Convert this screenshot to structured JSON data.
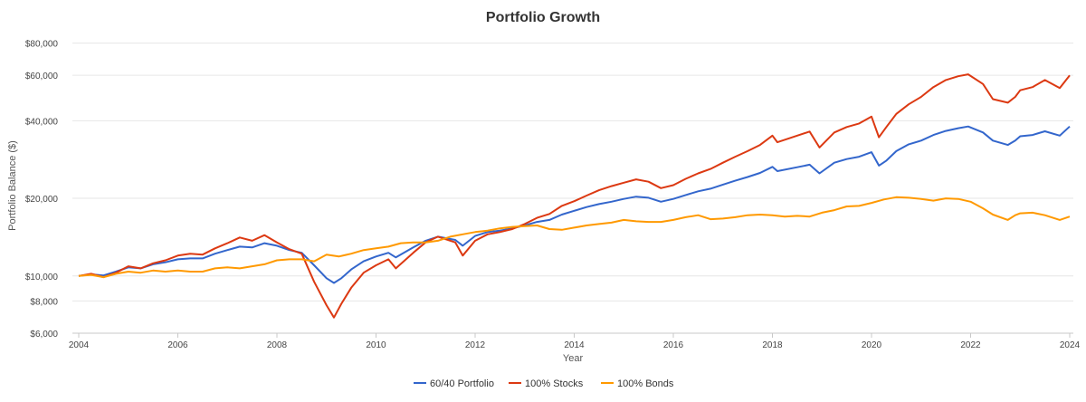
{
  "chart_data": {
    "type": "line",
    "title": "Portfolio Growth",
    "xlabel": "Year",
    "ylabel": "Portfolio Balance ($)",
    "y_scale": "log",
    "ylim": [
      6000,
      90000
    ],
    "xlim": [
      2004,
      2024
    ],
    "y_ticks": [
      {
        "value": 6000,
        "label": "$6,000"
      },
      {
        "value": 8000,
        "label": "$8,000"
      },
      {
        "value": 10000,
        "label": "$10,000"
      },
      {
        "value": 20000,
        "label": "$20,000"
      },
      {
        "value": 40000,
        "label": "$40,000"
      },
      {
        "value": 60000,
        "label": "$60,000"
      },
      {
        "value": 80000,
        "label": "$80,000"
      }
    ],
    "x_ticks": [
      {
        "value": 2004,
        "label": "2004"
      },
      {
        "value": 2006,
        "label": "2006"
      },
      {
        "value": 2008,
        "label": "2008"
      },
      {
        "value": 2010,
        "label": "2010"
      },
      {
        "value": 2012,
        "label": "2012"
      },
      {
        "value": 2014,
        "label": "2014"
      },
      {
        "value": 2016,
        "label": "2016"
      },
      {
        "value": 2018,
        "label": "2018"
      },
      {
        "value": 2020,
        "label": "2020"
      },
      {
        "value": 2022,
        "label": "2022"
      },
      {
        "value": 2024,
        "label": "2024"
      }
    ],
    "legend_position": "bottom-center",
    "series": [
      {
        "name": "60/40 Portfolio",
        "color": "#3366cc",
        "points": [
          [
            2004.0,
            10000
          ],
          [
            2004.25,
            10150
          ],
          [
            2004.5,
            10050
          ],
          [
            2004.75,
            10400
          ],
          [
            2005.0,
            10800
          ],
          [
            2005.25,
            10700
          ],
          [
            2005.5,
            11100
          ],
          [
            2005.75,
            11300
          ],
          [
            2006.0,
            11600
          ],
          [
            2006.25,
            11700
          ],
          [
            2006.5,
            11700
          ],
          [
            2006.75,
            12200
          ],
          [
            2007.0,
            12600
          ],
          [
            2007.25,
            13000
          ],
          [
            2007.5,
            12900
          ],
          [
            2007.75,
            13400
          ],
          [
            2008.0,
            13100
          ],
          [
            2008.25,
            12600
          ],
          [
            2008.5,
            12300
          ],
          [
            2008.75,
            11000
          ],
          [
            2009.0,
            9800
          ],
          [
            2009.15,
            9400
          ],
          [
            2009.3,
            9800
          ],
          [
            2009.5,
            10600
          ],
          [
            2009.75,
            11400
          ],
          [
            2010.0,
            11900
          ],
          [
            2010.25,
            12300
          ],
          [
            2010.4,
            11800
          ],
          [
            2010.75,
            12900
          ],
          [
            2011.0,
            13700
          ],
          [
            2011.25,
            14200
          ],
          [
            2011.6,
            13800
          ],
          [
            2011.75,
            13100
          ],
          [
            2012.0,
            14300
          ],
          [
            2012.25,
            14800
          ],
          [
            2012.5,
            15000
          ],
          [
            2012.75,
            15300
          ],
          [
            2013.0,
            15700
          ],
          [
            2013.25,
            16200
          ],
          [
            2013.5,
            16500
          ],
          [
            2013.75,
            17300
          ],
          [
            2014.0,
            17900
          ],
          [
            2014.25,
            18500
          ],
          [
            2014.5,
            19000
          ],
          [
            2014.75,
            19400
          ],
          [
            2015.0,
            19900
          ],
          [
            2015.25,
            20300
          ],
          [
            2015.5,
            20100
          ],
          [
            2015.75,
            19400
          ],
          [
            2016.0,
            19900
          ],
          [
            2016.25,
            20600
          ],
          [
            2016.5,
            21300
          ],
          [
            2016.75,
            21800
          ],
          [
            2017.0,
            22600
          ],
          [
            2017.25,
            23400
          ],
          [
            2017.5,
            24200
          ],
          [
            2017.75,
            25100
          ],
          [
            2018.0,
            26500
          ],
          [
            2018.1,
            25500
          ],
          [
            2018.5,
            26400
          ],
          [
            2018.75,
            27000
          ],
          [
            2018.95,
            25000
          ],
          [
            2019.25,
            27500
          ],
          [
            2019.5,
            28400
          ],
          [
            2019.75,
            29000
          ],
          [
            2020.0,
            30200
          ],
          [
            2020.15,
            26800
          ],
          [
            2020.3,
            28000
          ],
          [
            2020.5,
            30500
          ],
          [
            2020.75,
            32400
          ],
          [
            2021.0,
            33500
          ],
          [
            2021.25,
            35200
          ],
          [
            2021.5,
            36500
          ],
          [
            2021.75,
            37400
          ],
          [
            2021.95,
            38000
          ],
          [
            2022.25,
            36000
          ],
          [
            2022.45,
            33500
          ],
          [
            2022.75,
            32200
          ],
          [
            2022.9,
            33500
          ],
          [
            2023.0,
            34800
          ],
          [
            2023.25,
            35200
          ],
          [
            2023.5,
            36400
          ],
          [
            2023.8,
            35000
          ],
          [
            2024.0,
            38000
          ]
        ]
      },
      {
        "name": "100% Stocks",
        "color": "#dc3912",
        "points": [
          [
            2004.0,
            10000
          ],
          [
            2004.25,
            10200
          ],
          [
            2004.5,
            9900
          ],
          [
            2004.75,
            10300
          ],
          [
            2005.0,
            10900
          ],
          [
            2005.25,
            10700
          ],
          [
            2005.5,
            11200
          ],
          [
            2005.75,
            11500
          ],
          [
            2006.0,
            12000
          ],
          [
            2006.25,
            12200
          ],
          [
            2006.5,
            12100
          ],
          [
            2006.75,
            12800
          ],
          [
            2007.0,
            13400
          ],
          [
            2007.25,
            14100
          ],
          [
            2007.5,
            13700
          ],
          [
            2007.75,
            14400
          ],
          [
            2008.0,
            13500
          ],
          [
            2008.25,
            12700
          ],
          [
            2008.5,
            12200
          ],
          [
            2008.75,
            9500
          ],
          [
            2009.0,
            7700
          ],
          [
            2009.15,
            6900
          ],
          [
            2009.3,
            7800
          ],
          [
            2009.5,
            9000
          ],
          [
            2009.75,
            10300
          ],
          [
            2010.0,
            11000
          ],
          [
            2010.25,
            11600
          ],
          [
            2010.4,
            10700
          ],
          [
            2010.75,
            12300
          ],
          [
            2011.0,
            13500
          ],
          [
            2011.25,
            14200
          ],
          [
            2011.6,
            13500
          ],
          [
            2011.75,
            12000
          ],
          [
            2012.0,
            13700
          ],
          [
            2012.25,
            14500
          ],
          [
            2012.5,
            14800
          ],
          [
            2012.75,
            15200
          ],
          [
            2013.0,
            15900
          ],
          [
            2013.25,
            16800
          ],
          [
            2013.5,
            17400
          ],
          [
            2013.75,
            18700
          ],
          [
            2014.0,
            19500
          ],
          [
            2014.25,
            20500
          ],
          [
            2014.5,
            21500
          ],
          [
            2014.75,
            22300
          ],
          [
            2015.0,
            23000
          ],
          [
            2015.25,
            23700
          ],
          [
            2015.5,
            23200
          ],
          [
            2015.75,
            21900
          ],
          [
            2016.0,
            22500
          ],
          [
            2016.25,
            23800
          ],
          [
            2016.5,
            25000
          ],
          [
            2016.75,
            26000
          ],
          [
            2017.0,
            27500
          ],
          [
            2017.25,
            29000
          ],
          [
            2017.5,
            30500
          ],
          [
            2017.75,
            32200
          ],
          [
            2018.0,
            35000
          ],
          [
            2018.1,
            33000
          ],
          [
            2018.5,
            35000
          ],
          [
            2018.75,
            36300
          ],
          [
            2018.95,
            31500
          ],
          [
            2019.25,
            36000
          ],
          [
            2019.5,
            37800
          ],
          [
            2019.75,
            39000
          ],
          [
            2020.0,
            41500
          ],
          [
            2020.15,
            34500
          ],
          [
            2020.3,
            37800
          ],
          [
            2020.5,
            42500
          ],
          [
            2020.75,
            46300
          ],
          [
            2021.0,
            49500
          ],
          [
            2021.25,
            54000
          ],
          [
            2021.5,
            57500
          ],
          [
            2021.75,
            59500
          ],
          [
            2021.95,
            60500
          ],
          [
            2022.25,
            55500
          ],
          [
            2022.45,
            48500
          ],
          [
            2022.75,
            47000
          ],
          [
            2022.9,
            49500
          ],
          [
            2023.0,
            52500
          ],
          [
            2023.25,
            54000
          ],
          [
            2023.5,
            57500
          ],
          [
            2023.8,
            53500
          ],
          [
            2024.0,
            60000
          ]
        ]
      },
      {
        "name": "100% Bonds",
        "color": "#ff9900",
        "points": [
          [
            2004.0,
            10000
          ],
          [
            2004.25,
            10100
          ],
          [
            2004.5,
            9900
          ],
          [
            2004.75,
            10200
          ],
          [
            2005.0,
            10400
          ],
          [
            2005.25,
            10300
          ],
          [
            2005.5,
            10500
          ],
          [
            2005.75,
            10400
          ],
          [
            2006.0,
            10500
          ],
          [
            2006.25,
            10400
          ],
          [
            2006.5,
            10400
          ],
          [
            2006.75,
            10700
          ],
          [
            2007.0,
            10800
          ],
          [
            2007.25,
            10700
          ],
          [
            2007.5,
            10900
          ],
          [
            2007.75,
            11100
          ],
          [
            2008.0,
            11500
          ],
          [
            2008.25,
            11600
          ],
          [
            2008.5,
            11600
          ],
          [
            2008.75,
            11400
          ],
          [
            2009.0,
            12100
          ],
          [
            2009.25,
            11900
          ],
          [
            2009.5,
            12200
          ],
          [
            2009.75,
            12600
          ],
          [
            2010.0,
            12800
          ],
          [
            2010.25,
            13000
          ],
          [
            2010.5,
            13400
          ],
          [
            2010.75,
            13500
          ],
          [
            2011.0,
            13500
          ],
          [
            2011.25,
            13700
          ],
          [
            2011.5,
            14200
          ],
          [
            2011.75,
            14500
          ],
          [
            2012.0,
            14800
          ],
          [
            2012.25,
            15000
          ],
          [
            2012.5,
            15300
          ],
          [
            2012.75,
            15500
          ],
          [
            2013.0,
            15600
          ],
          [
            2013.25,
            15700
          ],
          [
            2013.5,
            15200
          ],
          [
            2013.75,
            15100
          ],
          [
            2014.0,
            15400
          ],
          [
            2014.25,
            15700
          ],
          [
            2014.5,
            15900
          ],
          [
            2014.75,
            16100
          ],
          [
            2015.0,
            16500
          ],
          [
            2015.25,
            16300
          ],
          [
            2015.5,
            16200
          ],
          [
            2015.75,
            16200
          ],
          [
            2016.0,
            16500
          ],
          [
            2016.25,
            16900
          ],
          [
            2016.5,
            17200
          ],
          [
            2016.75,
            16600
          ],
          [
            2017.0,
            16700
          ],
          [
            2017.25,
            16900
          ],
          [
            2017.5,
            17200
          ],
          [
            2017.75,
            17300
          ],
          [
            2018.0,
            17200
          ],
          [
            2018.25,
            17000
          ],
          [
            2018.5,
            17100
          ],
          [
            2018.75,
            17000
          ],
          [
            2019.0,
            17600
          ],
          [
            2019.25,
            18000
          ],
          [
            2019.5,
            18600
          ],
          [
            2019.75,
            18700
          ],
          [
            2020.0,
            19200
          ],
          [
            2020.25,
            19800
          ],
          [
            2020.5,
            20200
          ],
          [
            2020.75,
            20100
          ],
          [
            2021.0,
            19900
          ],
          [
            2021.25,
            19600
          ],
          [
            2021.5,
            20000
          ],
          [
            2021.75,
            19900
          ],
          [
            2022.0,
            19400
          ],
          [
            2022.25,
            18300
          ],
          [
            2022.45,
            17300
          ],
          [
            2022.75,
            16500
          ],
          [
            2022.9,
            17200
          ],
          [
            2023.0,
            17500
          ],
          [
            2023.25,
            17600
          ],
          [
            2023.5,
            17200
          ],
          [
            2023.8,
            16500
          ],
          [
            2024.0,
            17000
          ]
        ]
      }
    ]
  }
}
